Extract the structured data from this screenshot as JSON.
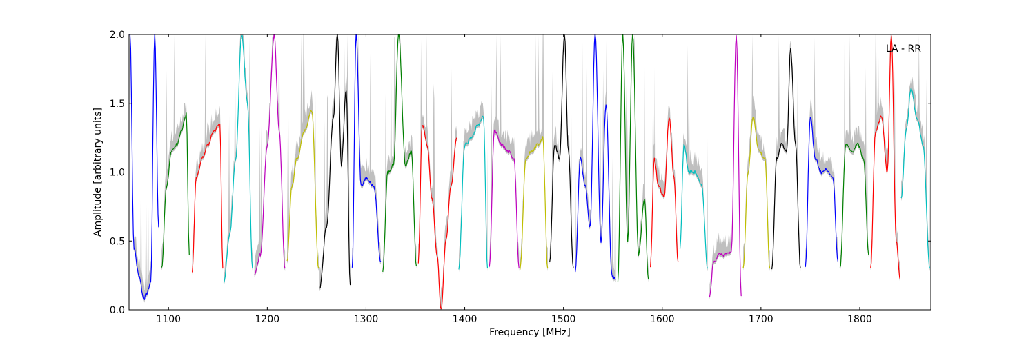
{
  "chart_data": {
    "type": "line",
    "title": "",
    "xlabel": "Frequency [MHz]",
    "ylabel": "Amplitude [arbitrary units]",
    "xlim": [
      1060,
      1872
    ],
    "ylim": [
      0.0,
      2.0
    ],
    "x_ticks": [
      1100,
      1200,
      1300,
      1400,
      1500,
      1600,
      1700,
      1800
    ],
    "x_tick_labels": [
      "1100",
      "1200",
      "1300",
      "1400",
      "1500",
      "1600",
      "1700",
      "1800"
    ],
    "y_ticks": [
      0.0,
      0.5,
      1.0,
      1.5,
      2.0
    ],
    "y_tick_labels": [
      "0.0",
      "0.5",
      "1.0",
      "1.5",
      "2.0"
    ],
    "grid": false,
    "annotation": "LA - RR",
    "band_color": "#bfbfbf",
    "colors": {
      "blue": "#0000ff",
      "green": "#008000",
      "red": "#ff0000",
      "cyan": "#00bfbf",
      "magenta": "#bf00bf",
      "yellow": "#bfbf00",
      "black": "#000000"
    },
    "segments": [
      {
        "color": "blue",
        "x": [
          1061,
          1065,
          1070,
          1075,
          1078,
          1082,
          1086,
          1090
        ],
        "y": [
          2.0,
          0.45,
          0.25,
          0.08,
          0.12,
          0.2,
          2.0,
          0.6
        ]
      },
      {
        "color": "green",
        "x": [
          1093,
          1098,
          1103,
          1108,
          1113,
          1118,
          1121
        ],
        "y": [
          0.3,
          0.9,
          1.15,
          1.2,
          1.3,
          1.42,
          0.4
        ]
      },
      {
        "color": "red",
        "x": [
          1124,
          1128,
          1134,
          1140,
          1146,
          1152,
          1155
        ],
        "y": [
          0.28,
          0.95,
          1.1,
          1.2,
          1.3,
          1.35,
          0.3
        ]
      },
      {
        "color": "cyan",
        "x": [
          1156,
          1162,
          1168,
          1174,
          1180,
          1185
        ],
        "y": [
          0.2,
          0.55,
          1.1,
          2.0,
          1.5,
          0.3
        ]
      },
      {
        "color": "magenta",
        "x": [
          1187,
          1193,
          1200,
          1207,
          1212,
          1218
        ],
        "y": [
          0.25,
          0.4,
          1.2,
          2.0,
          1.3,
          0.3
        ]
      },
      {
        "color": "yellow",
        "x": [
          1220,
          1225,
          1230,
          1238,
          1245,
          1252
        ],
        "y": [
          0.35,
          0.9,
          1.1,
          1.3,
          1.45,
          0.3
        ]
      },
      {
        "color": "black",
        "x": [
          1253,
          1260,
          1267,
          1271,
          1275,
          1280,
          1284
        ],
        "y": [
          0.15,
          0.6,
          1.4,
          2.0,
          1.05,
          1.6,
          0.18
        ]
      },
      {
        "color": "blue",
        "x": [
          1286,
          1290,
          1295,
          1300,
          1308,
          1315
        ],
        "y": [
          0.3,
          2.0,
          0.9,
          0.95,
          0.9,
          0.35
        ]
      },
      {
        "color": "green",
        "x": [
          1317,
          1322,
          1328,
          1333,
          1340,
          1346,
          1351
        ],
        "y": [
          0.28,
          1.0,
          1.05,
          2.0,
          1.05,
          1.15,
          0.32
        ]
      },
      {
        "color": "red",
        "x": [
          1353,
          1357,
          1362,
          1367,
          1372,
          1376,
          1381,
          1386,
          1392
        ],
        "y": [
          0.35,
          1.35,
          1.2,
          0.8,
          0.4,
          0.0,
          0.5,
          0.9,
          1.25
        ]
      },
      {
        "color": "cyan",
        "x": [
          1394,
          1400,
          1407,
          1414,
          1419,
          1423
        ],
        "y": [
          0.3,
          1.2,
          1.25,
          1.35,
          1.4,
          0.3
        ]
      },
      {
        "color": "magenta",
        "x": [
          1425,
          1430,
          1437,
          1444,
          1450,
          1455
        ],
        "y": [
          0.32,
          1.3,
          1.2,
          1.15,
          1.1,
          0.3
        ]
      },
      {
        "color": "yellow",
        "x": [
          1456,
          1462,
          1468,
          1474,
          1479,
          1484
        ],
        "y": [
          0.3,
          1.1,
          1.15,
          1.2,
          1.25,
          0.3
        ]
      },
      {
        "color": "black",
        "x": [
          1486,
          1491,
          1496,
          1501,
          1505,
          1510
        ],
        "y": [
          0.35,
          1.2,
          1.1,
          2.0,
          1.15,
          0.3
        ]
      },
      {
        "color": "blue",
        "x": [
          1512,
          1517,
          1522,
          1527,
          1532,
          1538,
          1543,
          1549,
          1553
        ],
        "y": [
          0.28,
          1.1,
          0.9,
          0.6,
          2.0,
          0.5,
          1.5,
          0.25,
          0.22
        ]
      },
      {
        "color": "green",
        "x": [
          1555,
          1560,
          1565,
          1570,
          1576,
          1582,
          1586
        ],
        "y": [
          0.2,
          2.0,
          0.5,
          2.0,
          0.4,
          0.8,
          0.22
        ]
      },
      {
        "color": "red",
        "x": [
          1588,
          1592,
          1596,
          1602,
          1607,
          1612,
          1616
        ],
        "y": [
          0.32,
          1.1,
          0.9,
          0.82,
          1.4,
          0.95,
          0.35
        ]
      },
      {
        "color": "cyan",
        "x": [
          1618,
          1622,
          1627,
          1633,
          1640,
          1646
        ],
        "y": [
          0.45,
          1.2,
          1.0,
          1.0,
          0.9,
          0.3
        ]
      },
      {
        "color": "magenta",
        "x": [
          1648,
          1652,
          1658,
          1664,
          1670,
          1675,
          1680
        ],
        "y": [
          0.1,
          0.35,
          0.4,
          0.4,
          0.42,
          2.0,
          0.1
        ]
      },
      {
        "color": "yellow",
        "x": [
          1682,
          1687,
          1692,
          1698,
          1704,
          1709
        ],
        "y": [
          0.3,
          1.0,
          1.4,
          1.15,
          1.1,
          0.3
        ]
      },
      {
        "color": "black",
        "x": [
          1711,
          1716,
          1721,
          1726,
          1730,
          1735,
          1740
        ],
        "y": [
          0.3,
          1.1,
          1.2,
          1.15,
          1.9,
          1.2,
          0.3
        ]
      },
      {
        "color": "blue",
        "x": [
          1745,
          1750,
          1755,
          1761,
          1767,
          1773,
          1778
        ],
        "y": [
          0.32,
          1.4,
          1.1,
          1.0,
          1.02,
          0.95,
          0.35
        ]
      },
      {
        "color": "green",
        "x": [
          1780,
          1786,
          1792,
          1798,
          1804,
          1809
        ],
        "y": [
          0.3,
          1.2,
          1.15,
          1.2,
          1.1,
          0.4
        ]
      },
      {
        "color": "red",
        "x": [
          1811,
          1816,
          1822,
          1828,
          1832,
          1837,
          1841
        ],
        "y": [
          0.3,
          1.3,
          1.4,
          1.0,
          2.0,
          0.5,
          0.22
        ]
      },
      {
        "color": "cyan",
        "x": [
          1842,
          1847,
          1852,
          1858,
          1864,
          1871
        ],
        "y": [
          0.8,
          1.3,
          1.6,
          1.4,
          1.2,
          0.3
        ]
      }
    ]
  }
}
